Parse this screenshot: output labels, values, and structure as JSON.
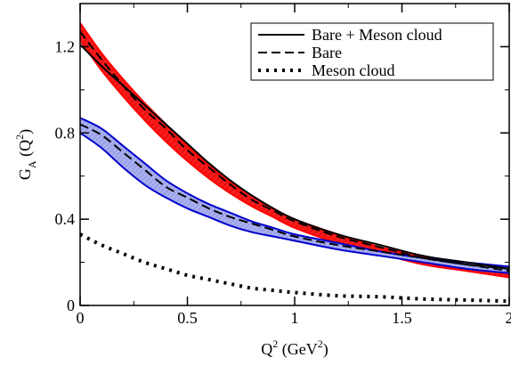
{
  "chart_data": {
    "type": "line",
    "xlabel": "Q",
    "xlabel_sup": "2",
    "xlabel_unit": " (GeV",
    "xlabel_unit_sup": "2",
    "xlabel_close": ")",
    "ylabel": "G",
    "ylabel_sub": "A",
    "ylabel_arg": " (Q",
    "ylabel_arg_sup": "2",
    "ylabel_close": ")",
    "xlim": [
      0,
      2
    ],
    "ylim": [
      0,
      1.4
    ],
    "xticks": [
      0,
      0.5,
      1,
      1.5,
      2
    ],
    "xtick_labels": [
      "0",
      "0.5",
      "1",
      "1.5",
      "2"
    ],
    "yticks": [
      0,
      0.4,
      0.8,
      1.2
    ],
    "ytick_labels": [
      "0",
      "0.4",
      "0.8",
      "1.2"
    ],
    "legend_position": "top-right",
    "legend": [
      {
        "label": "Bare + Meson cloud",
        "style": "solid"
      },
      {
        "label": "Bare",
        "style": "dashed"
      },
      {
        "label": "Meson cloud",
        "style": "dotted"
      }
    ],
    "colors": {
      "red_band": "#ff0000",
      "blue_band": "#0000cc",
      "blue_fill": "#aab0ee"
    },
    "x": [
      0,
      0.1,
      0.2,
      0.3,
      0.4,
      0.5,
      0.6,
      0.7,
      0.8,
      0.9,
      1.0,
      1.2,
      1.4,
      1.6,
      1.8,
      2.0
    ],
    "series": [
      {
        "style": "solid",
        "color": "#000000",
        "values": [
          1.21,
          1.11,
          1.02,
          0.93,
          0.84,
          0.75,
          0.66,
          0.58,
          0.51,
          0.45,
          0.4,
          0.33,
          0.28,
          0.23,
          0.2,
          0.17
        ]
      },
      {
        "style": "dashed",
        "color": "#000000",
        "values": [
          1.27,
          1.14,
          1.02,
          0.91,
          0.82,
          0.72,
          0.64,
          0.56,
          0.49,
          0.44,
          0.39,
          0.32,
          0.27,
          0.22,
          0.19,
          0.16
        ]
      },
      {
        "style": "dotted",
        "color": "#000000",
        "values": [
          0.33,
          0.28,
          0.24,
          0.2,
          0.17,
          0.14,
          0.12,
          0.1,
          0.08,
          0.07,
          0.06,
          0.045,
          0.04,
          0.03,
          0.025,
          0.02
        ]
      },
      {
        "style": "dashed",
        "color": "#000000",
        "values": [
          0.84,
          0.79,
          0.71,
          0.63,
          0.55,
          0.5,
          0.45,
          0.41,
          0.38,
          0.35,
          0.32,
          0.28,
          0.25,
          0.22,
          0.19,
          0.17
        ]
      }
    ],
    "bands": [
      {
        "name": "red",
        "upper": [
          1.31,
          1.17,
          1.05,
          0.94,
          0.84,
          0.74,
          0.65,
          0.57,
          0.51,
          0.45,
          0.4,
          0.33,
          0.27,
          0.23,
          0.19,
          0.16
        ],
        "lower": [
          1.23,
          1.09,
          0.97,
          0.86,
          0.76,
          0.67,
          0.59,
          0.52,
          0.46,
          0.41,
          0.36,
          0.29,
          0.24,
          0.19,
          0.16,
          0.13
        ]
      },
      {
        "name": "blue",
        "upper": [
          0.87,
          0.82,
          0.74,
          0.66,
          0.58,
          0.52,
          0.47,
          0.43,
          0.39,
          0.36,
          0.33,
          0.29,
          0.25,
          0.22,
          0.2,
          0.18
        ],
        "lower": [
          0.8,
          0.73,
          0.64,
          0.56,
          0.5,
          0.45,
          0.41,
          0.37,
          0.34,
          0.32,
          0.3,
          0.26,
          0.23,
          0.2,
          0.17,
          0.15
        ]
      }
    ]
  }
}
